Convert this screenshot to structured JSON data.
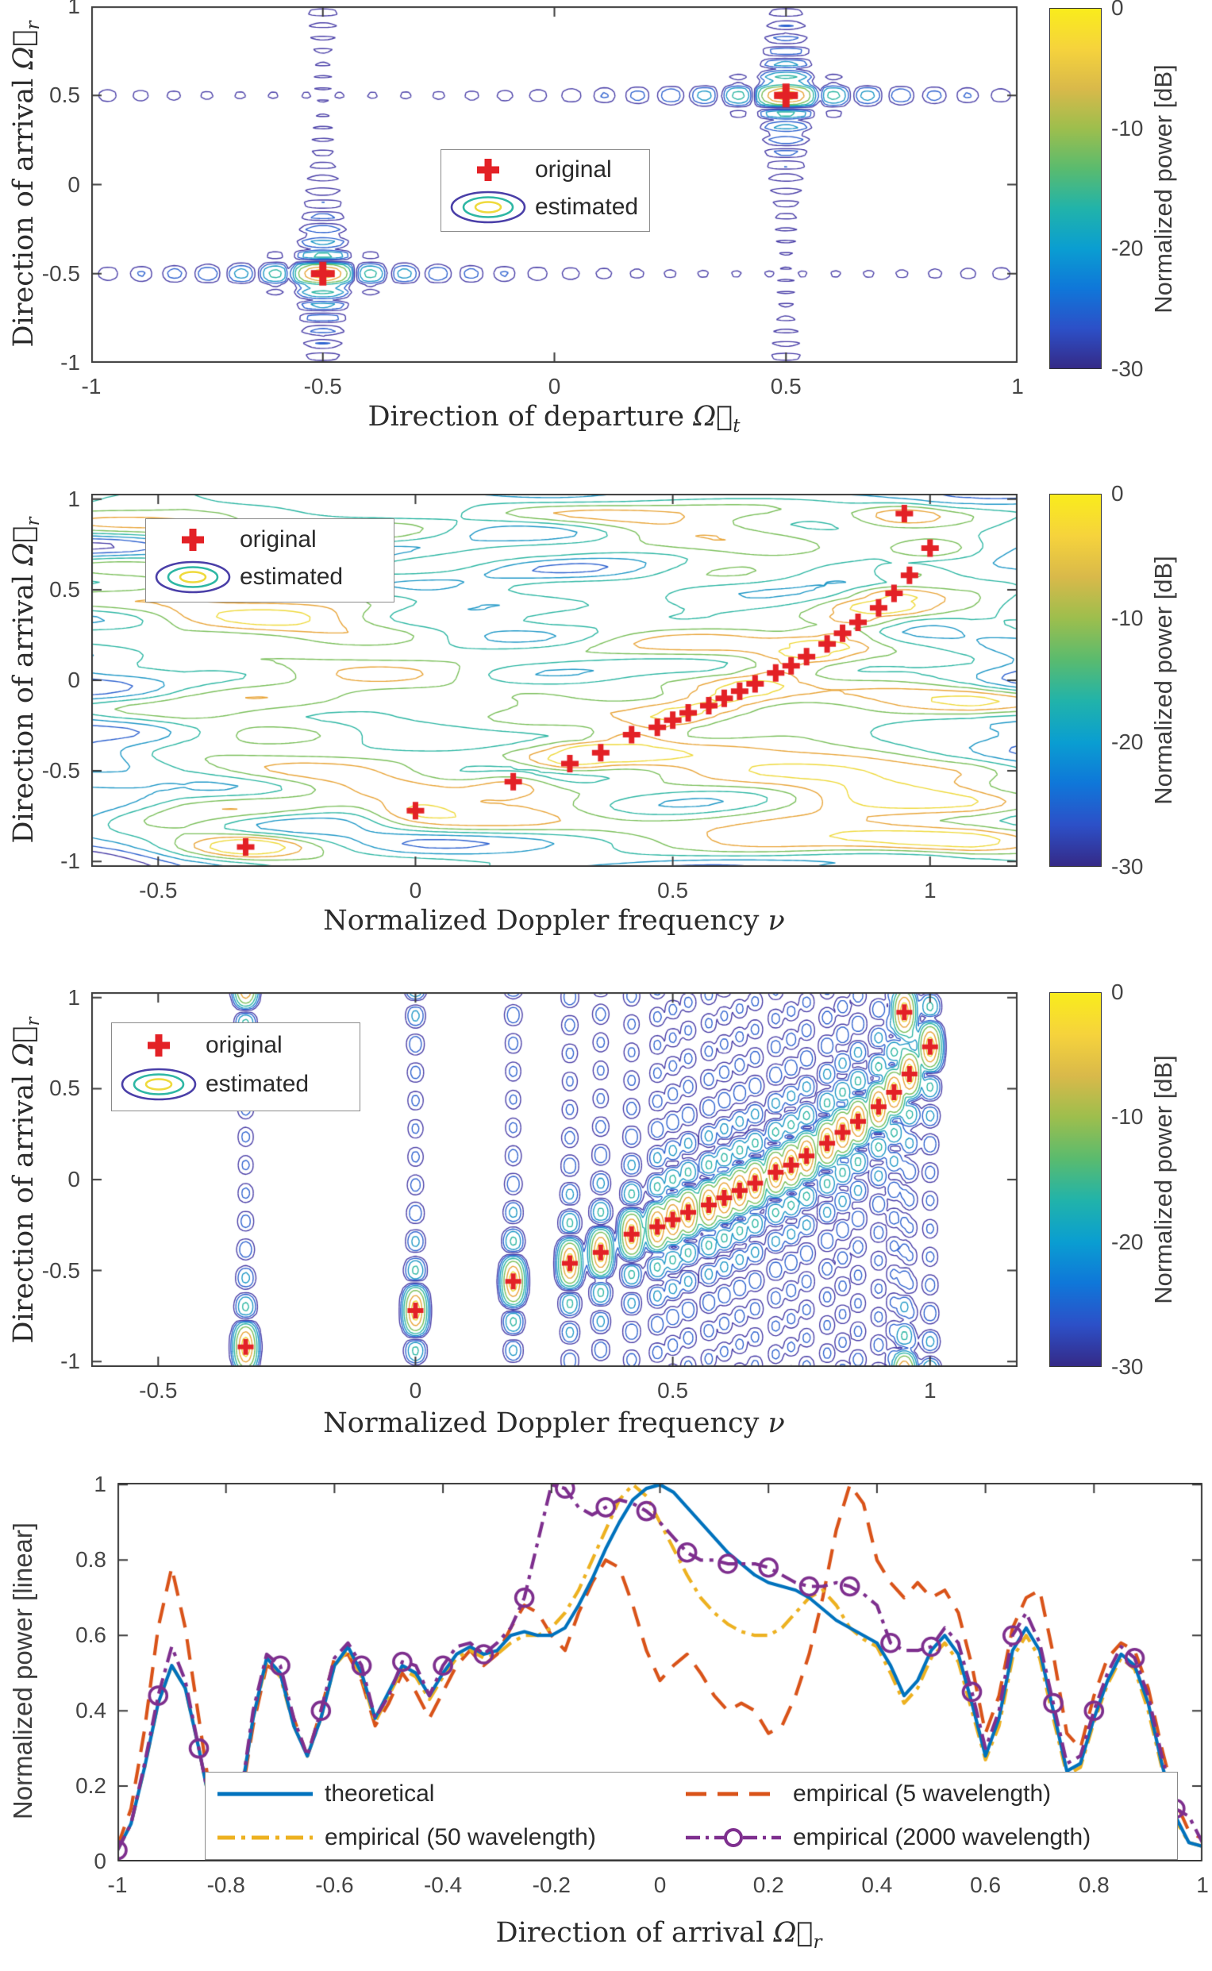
{
  "figure": {
    "colorbar": {
      "label": "Normalized power [dB]",
      "ticks": [
        "0",
        "-10",
        "-20",
        "-30"
      ]
    },
    "contour_legend": {
      "original": "original",
      "estimated": "estimated"
    },
    "line_legend": [
      "theoretical",
      "empirical (5 wavelength)",
      "empirical (50 wavelength)",
      "empirical (2000 wavelength)"
    ],
    "panels": [
      {
        "ylabel": {
          "text": "Direction of arrival ",
          "symbol": "Ω⃗",
          "sub": "r"
        },
        "xlabel": {
          "text": "Direction of departure ",
          "symbol": "Ω⃗",
          "sub": "t"
        },
        "xticks": [
          "-1",
          "-0.5",
          "0",
          "0.5",
          "1"
        ],
        "yticks": [
          "1",
          "0.5",
          "0",
          "-0.5",
          "-1"
        ]
      },
      {
        "ylabel": {
          "text": "Direction of arrival ",
          "symbol": "Ω⃗",
          "sub": "r"
        },
        "xlabel": {
          "text": "Normalized Doppler frequency ",
          "symbol": "ν",
          "sub": ""
        },
        "xticks": [
          "-0.5",
          "0",
          "0.5",
          "1"
        ],
        "yticks": [
          "1",
          "0.5",
          "0",
          "-0.5",
          "-1"
        ]
      },
      {
        "ylabel": {
          "text": "Direction of arrival ",
          "symbol": "Ω⃗",
          "sub": "r"
        },
        "xlabel": {
          "text": "Normalized Doppler frequency ",
          "symbol": "ν",
          "sub": ""
        },
        "xticks": [
          "-0.5",
          "0",
          "0.5",
          "1"
        ],
        "yticks": [
          "1",
          "0.5",
          "0",
          "-0.5",
          "-1"
        ]
      },
      {
        "ylabel": {
          "text": "Normalized power [linear]",
          "symbol": "",
          "sub": ""
        },
        "xlabel": {
          "text": "Direction of arrival ",
          "symbol": "Ω⃗",
          "sub": "r"
        },
        "xticks": [
          "-1",
          "-0.8",
          "-0.6",
          "-0.4",
          "-0.2",
          "0",
          "0.2",
          "0.4",
          "0.6",
          "0.8",
          "1"
        ],
        "yticks": [
          "1",
          "0.8",
          "0.6",
          "0.4",
          "0.2",
          "0"
        ]
      }
    ]
  },
  "colors": {
    "series_blue": "#0072BD",
    "series_orange": "#D95319",
    "series_yellow": "#EDB120",
    "series_purple": "#7E2F8E",
    "red_cross": "#E32126",
    "axis": "#3a3a3a",
    "tick_text": "#454545",
    "contour_levels": [
      "#4a3fa8",
      "#2f63d0",
      "#1f98c7",
      "#2eb7a4",
      "#7cc05c",
      "#e9a63b",
      "#efda3d"
    ],
    "colorbar_stops": [
      "#352a87",
      "#2c50c8",
      "#0f77d9",
      "#0a9ed1",
      "#21b3aa",
      "#5abb6e",
      "#9dbe4d",
      "#d9b94a",
      "#f6d33c",
      "#f9ec1c"
    ]
  },
  "chart_data": [
    {
      "type": "contour",
      "title": "joint DoD/DoA power spectrum",
      "xlabel": "Direction of departure Ω⃗t",
      "ylabel": "Direction of arrival Ω⃗r",
      "xlim": [
        -1,
        1
      ],
      "ylim": [
        -1,
        1
      ],
      "xticks": [
        -1,
        -0.5,
        0,
        0.5,
        1
      ],
      "yticks": [
        1,
        0.5,
        0,
        -0.5,
        -1
      ],
      "levels_db": [
        -30,
        -25,
        -20,
        -15,
        -10,
        -5,
        -2
      ],
      "colorbar_range": [
        0,
        -30
      ],
      "kernel_N": 28,
      "crosses": [
        [
          -0.5,
          -0.5
        ],
        [
          0.5,
          0.5
        ]
      ],
      "legend": [
        "original",
        "estimated"
      ],
      "legend_position": "center-top"
    },
    {
      "type": "contour",
      "title": "Doppler/DoA power spectrum (smooth estimate)",
      "xlabel": "Normalized Doppler frequency ν",
      "ylabel": "Direction of arrival Ω⃗r",
      "xlim": [
        -0.63,
        1.17
      ],
      "ylim": [
        -1.03,
        1.03
      ],
      "xticks": [
        -0.5,
        0,
        0.5,
        1
      ],
      "yticks": [
        1,
        0.5,
        0,
        -0.5,
        -1
      ],
      "levels_db": [
        -30,
        -26,
        -22,
        -18,
        -14,
        -10,
        -6
      ],
      "colorbar_range": [
        0,
        -30
      ],
      "field": "random-smooth",
      "seed": 7,
      "crosses": [
        [
          -0.33,
          -0.92
        ],
        [
          0.0,
          -0.72
        ],
        [
          0.19,
          -0.56
        ],
        [
          0.3,
          -0.46
        ],
        [
          0.36,
          -0.4
        ],
        [
          0.42,
          -0.3
        ],
        [
          0.47,
          -0.26
        ],
        [
          0.5,
          -0.22
        ],
        [
          0.53,
          -0.18
        ],
        [
          0.57,
          -0.14
        ],
        [
          0.6,
          -0.1
        ],
        [
          0.63,
          -0.06
        ],
        [
          0.66,
          -0.02
        ],
        [
          0.7,
          0.04
        ],
        [
          0.73,
          0.08
        ],
        [
          0.76,
          0.13
        ],
        [
          0.8,
          0.2
        ],
        [
          0.83,
          0.26
        ],
        [
          0.86,
          0.32
        ],
        [
          0.9,
          0.4
        ],
        [
          0.93,
          0.48
        ],
        [
          0.96,
          0.58
        ],
        [
          1.0,
          0.73
        ],
        [
          0.95,
          0.92
        ]
      ],
      "legend": [
        "original",
        "estimated"
      ],
      "legend_position": "top-left"
    },
    {
      "type": "contour",
      "title": "Doppler/DoA power spectrum (striped estimate)",
      "xlabel": "Normalized Doppler frequency ν",
      "ylabel": "Direction of arrival Ω⃗r",
      "xlim": [
        -0.63,
        1.17
      ],
      "ylim": [
        -1.03,
        1.03
      ],
      "xticks": [
        -0.5,
        0,
        0.5,
        1
      ],
      "yticks": [
        1,
        0.5,
        0,
        -0.5,
        -1
      ],
      "levels_db": [
        -30,
        -25,
        -20,
        -15,
        -10,
        -5,
        -2
      ],
      "colorbar_range": [
        0,
        -30
      ],
      "field": "vertical-stripes",
      "stripe_sigma": 0.012,
      "kernel_N": 13,
      "crosses": [
        [
          -0.33,
          -0.92
        ],
        [
          0.0,
          -0.72
        ],
        [
          0.19,
          -0.56
        ],
        [
          0.3,
          -0.46
        ],
        [
          0.36,
          -0.4
        ],
        [
          0.42,
          -0.3
        ],
        [
          0.47,
          -0.26
        ],
        [
          0.5,
          -0.22
        ],
        [
          0.53,
          -0.18
        ],
        [
          0.57,
          -0.14
        ],
        [
          0.6,
          -0.1
        ],
        [
          0.63,
          -0.06
        ],
        [
          0.66,
          -0.02
        ],
        [
          0.7,
          0.04
        ],
        [
          0.73,
          0.08
        ],
        [
          0.76,
          0.13
        ],
        [
          0.8,
          0.2
        ],
        [
          0.83,
          0.26
        ],
        [
          0.86,
          0.32
        ],
        [
          0.9,
          0.4
        ],
        [
          0.93,
          0.48
        ],
        [
          0.96,
          0.58
        ],
        [
          1.0,
          0.73
        ],
        [
          0.95,
          0.92
        ]
      ],
      "legend": [
        "original",
        "estimated"
      ],
      "legend_position": "top-left"
    },
    {
      "type": "line",
      "title": "Normalized power vs direction of arrival",
      "xlabel": "Direction of arrival Ω⃗r",
      "ylabel": "Normalized power [linear]",
      "xlim": [
        -1,
        1
      ],
      "ylim": [
        0,
        1
      ],
      "xticks": [
        -1,
        -0.8,
        -0.6,
        -0.4,
        -0.2,
        0,
        0.2,
        0.4,
        0.6,
        0.8,
        1
      ],
      "yticks": [
        0,
        0.2,
        0.4,
        0.6,
        0.8,
        1
      ],
      "x_start": -1,
      "x_step": 0.025,
      "series": [
        {
          "name": "theoretical",
          "color": "#0072BD",
          "style": "solid",
          "marker": "none",
          "values": [
            0.03,
            0.1,
            0.25,
            0.42,
            0.52,
            0.46,
            0.3,
            0.12,
            0.03,
            0.15,
            0.38,
            0.54,
            0.5,
            0.36,
            0.28,
            0.38,
            0.52,
            0.57,
            0.5,
            0.38,
            0.45,
            0.52,
            0.5,
            0.44,
            0.5,
            0.55,
            0.57,
            0.55,
            0.56,
            0.6,
            0.61,
            0.6,
            0.6,
            0.62,
            0.68,
            0.75,
            0.83,
            0.9,
            0.96,
            0.99,
            1.0,
            0.98,
            0.94,
            0.9,
            0.86,
            0.82,
            0.79,
            0.76,
            0.74,
            0.73,
            0.72,
            0.7,
            0.67,
            0.64,
            0.62,
            0.6,
            0.58,
            0.52,
            0.44,
            0.48,
            0.56,
            0.6,
            0.55,
            0.42,
            0.28,
            0.38,
            0.56,
            0.62,
            0.56,
            0.4,
            0.24,
            0.26,
            0.38,
            0.48,
            0.55,
            0.52,
            0.42,
            0.26,
            0.12,
            0.05,
            0.04
          ]
        },
        {
          "name": "empirical (5 wavelength)",
          "color": "#D95319",
          "style": "dashed",
          "marker": "none",
          "values": [
            0.04,
            0.14,
            0.35,
            0.62,
            0.78,
            0.62,
            0.38,
            0.14,
            0.03,
            0.14,
            0.36,
            0.52,
            0.5,
            0.38,
            0.28,
            0.4,
            0.54,
            0.55,
            0.48,
            0.36,
            0.42,
            0.5,
            0.45,
            0.38,
            0.45,
            0.52,
            0.56,
            0.52,
            0.55,
            0.62,
            0.68,
            0.66,
            0.6,
            0.56,
            0.66,
            0.74,
            0.8,
            0.78,
            0.68,
            0.56,
            0.48,
            0.52,
            0.55,
            0.5,
            0.44,
            0.4,
            0.42,
            0.4,
            0.34,
            0.36,
            0.44,
            0.55,
            0.7,
            0.88,
            1.0,
            0.95,
            0.8,
            0.74,
            0.7,
            0.74,
            0.7,
            0.72,
            0.66,
            0.52,
            0.34,
            0.44,
            0.62,
            0.7,
            0.72,
            0.55,
            0.34,
            0.3,
            0.44,
            0.54,
            0.58,
            0.56,
            0.46,
            0.3,
            0.16,
            0.08,
            0.06
          ]
        },
        {
          "name": "empirical (50 wavelength)",
          "color": "#EDB120",
          "style": "dashdot",
          "marker": "none",
          "values": [
            0.03,
            0.1,
            0.25,
            0.42,
            0.52,
            0.46,
            0.3,
            0.12,
            0.03,
            0.15,
            0.38,
            0.53,
            0.49,
            0.36,
            0.28,
            0.38,
            0.52,
            0.56,
            0.49,
            0.37,
            0.44,
            0.51,
            0.49,
            0.43,
            0.49,
            0.54,
            0.56,
            0.54,
            0.55,
            0.58,
            0.6,
            0.6,
            0.62,
            0.66,
            0.72,
            0.8,
            0.88,
            0.96,
            1.0,
            0.97,
            0.9,
            0.83,
            0.76,
            0.7,
            0.66,
            0.63,
            0.61,
            0.6,
            0.6,
            0.62,
            0.66,
            0.7,
            0.72,
            0.68,
            0.62,
            0.59,
            0.57,
            0.5,
            0.42,
            0.46,
            0.54,
            0.58,
            0.53,
            0.4,
            0.27,
            0.36,
            0.54,
            0.6,
            0.54,
            0.38,
            0.23,
            0.25,
            0.37,
            0.47,
            0.54,
            0.51,
            0.4,
            0.25,
            0.11,
            0.05,
            0.04
          ]
        },
        {
          "name": "empirical (2000 wavelength)",
          "color": "#7E2F8E",
          "style": "dashdot",
          "marker": "circle",
          "marker_every": 3,
          "values": [
            0.03,
            0.1,
            0.26,
            0.44,
            0.57,
            0.48,
            0.3,
            0.12,
            0.03,
            0.15,
            0.4,
            0.55,
            0.52,
            0.38,
            0.28,
            0.4,
            0.54,
            0.58,
            0.52,
            0.38,
            0.44,
            0.53,
            0.52,
            0.44,
            0.52,
            0.57,
            0.58,
            0.55,
            0.58,
            0.62,
            0.7,
            0.85,
            1.0,
            0.99,
            0.94,
            0.92,
            0.94,
            0.96,
            0.95,
            0.93,
            0.9,
            0.86,
            0.82,
            0.8,
            0.8,
            0.79,
            0.79,
            0.79,
            0.78,
            0.76,
            0.74,
            0.73,
            0.73,
            0.74,
            0.73,
            0.71,
            0.68,
            0.58,
            0.56,
            0.56,
            0.57,
            0.62,
            0.58,
            0.45,
            0.3,
            0.4,
            0.6,
            0.66,
            0.58,
            0.42,
            0.26,
            0.28,
            0.4,
            0.5,
            0.57,
            0.54,
            0.44,
            0.28,
            0.14,
            0.12,
            0.05
          ]
        }
      ],
      "legend_position": "bottom"
    }
  ]
}
